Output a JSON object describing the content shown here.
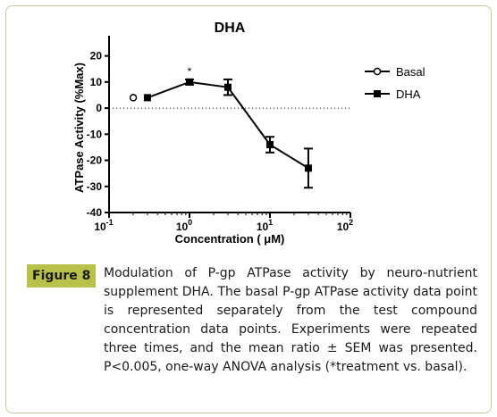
{
  "chart_data": {
    "type": "line",
    "title": "DHA",
    "xlabel": "Concentration ( μM)",
    "ylabel": "ATPase Activity (%Max)",
    "xscale": "log",
    "xlim": [
      0.1,
      100
    ],
    "ylim": [
      -40,
      25
    ],
    "x_ticks": [
      {
        "base": "10",
        "exp": "-1"
      },
      {
        "base": "10",
        "exp": "0"
      },
      {
        "base": "10",
        "exp": "1"
      },
      {
        "base": "10",
        "exp": "2"
      }
    ],
    "y_ticks": [
      "20",
      "10",
      "0",
      "-10",
      "-20",
      "-30",
      "-40"
    ],
    "reference_line": {
      "y": 0,
      "style": "dotted"
    },
    "annotation": "*",
    "legend_position": "right",
    "series": [
      {
        "name": "Basal",
        "marker": "circle-open",
        "points": [
          {
            "x": 0.2,
            "y": 4
          }
        ]
      },
      {
        "name": "DHA",
        "marker": "square-filled",
        "points": [
          {
            "x": 0.3,
            "y": 4,
            "err": 0
          },
          {
            "x": 1,
            "y": 10,
            "err": 1
          },
          {
            "x": 3,
            "y": 8,
            "err": 3
          },
          {
            "x": 10,
            "y": -14,
            "err": 3
          },
          {
            "x": 30,
            "y": -23,
            "err": 7.5
          }
        ]
      }
    ]
  },
  "caption": {
    "label": "Figure 8",
    "text": "Modulation of P-gp ATPase activity by neuro-nutrient supplement DHA. The basal P-gp ATPase activity data point is represented separately from the test compound concentration data points. Experiments were repeated three times, and the mean ratio ± SEM was presented. P<0.005, one-way ANOVA analysis (*treatment vs. basal)."
  }
}
